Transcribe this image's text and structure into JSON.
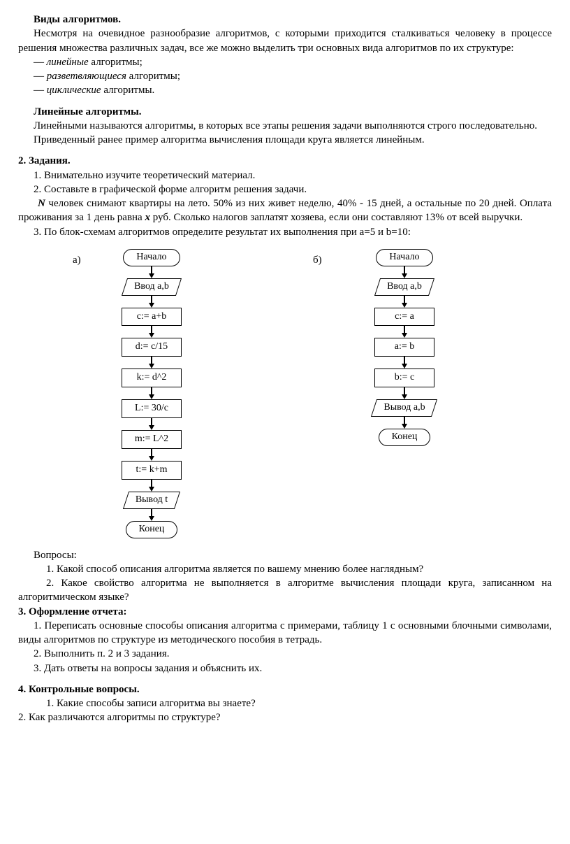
{
  "h_types": "Виды алгоритмов.",
  "p_types1": "Несмотря на очевидное разнообразие алгоритмов, с которыми приходится сталкиваться человеку в процессе решения множества различных задач, все же можно выделить три основных вида алгоритмов по их структуре:",
  "li_type1_pre": "— ",
  "li_type1_it": "линейные",
  "li_type1_post": " алгоритмы;",
  "li_type2_pre": "— ",
  "li_type2_it": "разветвляющиеся",
  "li_type2_post": " алгоритмы;",
  "li_type3_pre": "— ",
  "li_type3_it": "циклические",
  "li_type3_post": " алгоритмы.",
  "h_linear": "Линейные алгоритмы.",
  "p_linear1": "Линейными называются алгоритмы, в которых все этапы решения задачи выполняются строго последовательно.",
  "p_linear2": "Приведенный ранее пример алгоритма вычисления площади круга является линейным.",
  "h_tasks": "2. Задания.",
  "t1": "1. Внимательно изучите теоретический материал.",
  "t2": "2. Составьте в графической форме алгоритм решения задачи.",
  "t_problem_N": "N",
  "t_problem_a": " человек снимают квартиры на лето. 50% из них живет неделю, 40% - 15 дней, а остальные по 20 дней. Оплата проживания за 1 день равна ",
  "t_problem_x": "x",
  "t_problem_b": " руб. Сколько налогов заплатят хозяева, если они составляют 13% от всей выручки.",
  "t3": "3. По блок-схемам алгоритмов определите результат их выполнения при a=5 и b=10:",
  "flow": {
    "label_a": "а)",
    "label_b": "б)",
    "start": "Начало",
    "end": "Конец",
    "in_ab": "Ввод a,b",
    "out_t": "Вывод  t",
    "out_ab": "Вывод a,b",
    "a_steps": [
      "c:= a+b",
      "d:= c/15",
      "k:= d^2",
      "L:= 30/c",
      "m:= L^2",
      "t:= k+m"
    ],
    "b_steps": [
      "c:= a",
      "a:= b",
      "b:= c"
    ]
  },
  "h_questions": "Вопросы:",
  "q1": "1. Какой способ описания алгоритма является по вашему мнению более наглядным?",
  "q2": "2. Какое свойство алгоритма не выполняется в алгоритме вычисления площади круга, записанном на алгоритмическом языке?",
  "h_report": "3. Оформление отчета:",
  "r1": "1. Переписать основные способы описания алгоритма с примерами, таблицу 1 с основными блочными символами, виды алгоритмов по структуре  из методического пособия в тетрадь.",
  "r2": "2. Выполнить п. 2 и 3 задания.",
  "r3": "3. Дать ответы на вопросы задания и объяснить их.",
  "h_kontrol": "4. Контрольные вопросы.",
  "k1": "1. Какие способы записи алгоритма вы знаете?",
  "k2": "2. Как различаются алгоритмы по структуре?"
}
